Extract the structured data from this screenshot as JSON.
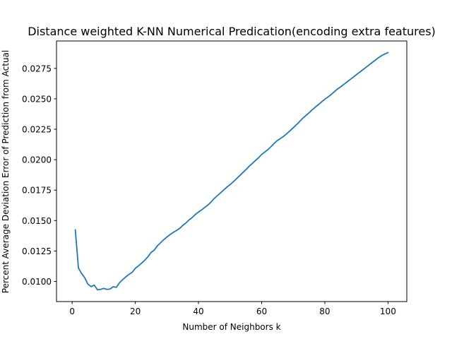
{
  "chart_data": {
    "type": "line",
    "title": "Distance weighted K-NN Numerical Predication(encoding extra features)",
    "xlabel": "Number of Neighbors k",
    "ylabel": "Percent Average Deviation Error of Prediction from Actual",
    "xlim": [
      -4.95,
      105.95
    ],
    "ylim": [
      0.00835,
      0.02975
    ],
    "xticks": [
      0,
      20,
      40,
      60,
      80,
      100
    ],
    "xtick_labels": [
      "0",
      "20",
      "40",
      "60",
      "80",
      "100"
    ],
    "yticks": [
      0.01,
      0.0125,
      0.015,
      0.0175,
      0.02,
      0.0225,
      0.025,
      0.0275
    ],
    "ytick_labels": [
      "0.0100",
      "0.0125",
      "0.0150",
      "0.0175",
      "0.0200",
      "0.0225",
      "0.0250",
      "0.0275"
    ],
    "grid": false,
    "legend": "none",
    "series": [
      {
        "color": "#1f77b4",
        "x": [
          1,
          2,
          3,
          4,
          5,
          6,
          7,
          8,
          9,
          10,
          11,
          12,
          13,
          14,
          15,
          16,
          17,
          18,
          19,
          20,
          21,
          22,
          23,
          24,
          25,
          26,
          27,
          28,
          29,
          30,
          31,
          32,
          33,
          34,
          35,
          36,
          37,
          38,
          39,
          40,
          41,
          42,
          43,
          44,
          45,
          46,
          47,
          48,
          49,
          50,
          51,
          52,
          53,
          54,
          55,
          56,
          57,
          58,
          59,
          60,
          61,
          62,
          63,
          64,
          65,
          66,
          67,
          68,
          69,
          70,
          71,
          72,
          73,
          74,
          75,
          76,
          77,
          78,
          79,
          80,
          81,
          82,
          83,
          84,
          85,
          86,
          87,
          88,
          89,
          90,
          91,
          92,
          93,
          94,
          95,
          96,
          97,
          98,
          99,
          100
        ],
        "y": [
          0.01425,
          0.0111,
          0.01065,
          0.0103,
          0.00978,
          0.00958,
          0.0097,
          0.00932,
          0.00935,
          0.00943,
          0.00935,
          0.00938,
          0.00957,
          0.00952,
          0.0099,
          0.01015,
          0.01038,
          0.01058,
          0.01075,
          0.01108,
          0.01128,
          0.0115,
          0.01175,
          0.01203,
          0.01238,
          0.01258,
          0.01293,
          0.01318,
          0.01343,
          0.01365,
          0.01385,
          0.01403,
          0.01418,
          0.01435,
          0.0146,
          0.0148,
          0.01505,
          0.01525,
          0.0155,
          0.0157,
          0.01588,
          0.01608,
          0.01628,
          0.01653,
          0.01682,
          0.01705,
          0.01728,
          0.01752,
          0.01775,
          0.01795,
          0.01818,
          0.01843,
          0.01868,
          0.01893,
          0.01918,
          0.01945,
          0.01968,
          0.01993,
          0.02015,
          0.02043,
          0.02063,
          0.02083,
          0.02108,
          0.02135,
          0.02158,
          0.02175,
          0.02193,
          0.02215,
          0.02238,
          0.02262,
          0.02287,
          0.02313,
          0.0234,
          0.02363,
          0.02385,
          0.0241,
          0.02432,
          0.02453,
          0.02475,
          0.02497,
          0.02515,
          0.02535,
          0.02558,
          0.0258,
          0.02598,
          0.02618,
          0.02638,
          0.02658,
          0.02678,
          0.02698,
          0.02718,
          0.02738,
          0.02758,
          0.02778,
          0.02798,
          0.02818,
          0.02838,
          0.02855,
          0.02868,
          0.0288
        ]
      }
    ]
  }
}
